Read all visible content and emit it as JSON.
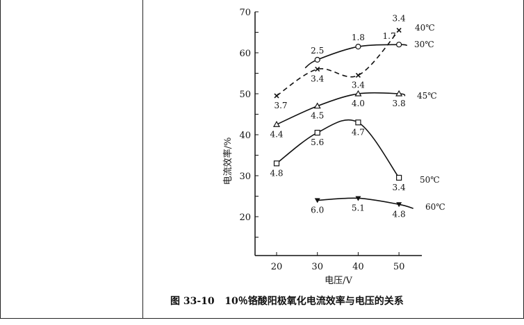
{
  "chart_data": {
    "type": "line",
    "caption": "图 33-10   10％铬酸阳极氧化电流效率与电压的关系",
    "xlabel": "电压/V",
    "ylabel": "电流效率/%",
    "xlim": [
      15,
      55
    ],
    "ylim": [
      10,
      70
    ],
    "xticks": [
      "20",
      "30",
      "40",
      "50"
    ],
    "xtick_values": [
      20,
      30,
      40,
      50
    ],
    "yticks": [
      "20",
      "30",
      "40",
      "50",
      "60",
      "70"
    ],
    "ytick_values": [
      20,
      30,
      40,
      50,
      60,
      70
    ],
    "grid": false,
    "series": [
      {
        "name": "30℃",
        "marker": "circle",
        "dashed": false,
        "x": [
          30,
          40,
          50
        ],
        "y": [
          58.3,
          61.5,
          62
        ],
        "point_labels": [
          "2.5",
          "1.8",
          "1.7"
        ],
        "curve_x": [
          27,
          52
        ]
      },
      {
        "name": "40℃",
        "marker": "x",
        "dashed": true,
        "x": [
          20,
          30,
          40,
          50
        ],
        "y": [
          49.5,
          56,
          54.5,
          65.5
        ],
        "point_labels": [
          "3.7",
          "3.4",
          "3.4",
          "3.4"
        ]
      },
      {
        "name": "45℃",
        "marker": "triangle",
        "dashed": false,
        "x": [
          20,
          30,
          40,
          50
        ],
        "y": [
          42.5,
          47,
          50,
          50
        ],
        "point_labels": [
          "4.4",
          "4.5",
          "4.0",
          "3.8"
        ]
      },
      {
        "name": "50℃",
        "marker": "square",
        "dashed": false,
        "x": [
          20,
          30,
          40,
          50
        ],
        "y": [
          33,
          40.5,
          43,
          29.5
        ],
        "point_labels": [
          "4.8",
          "5.6",
          "4.7",
          "3.4"
        ]
      },
      {
        "name": "60℃",
        "marker": "triangle-down",
        "dashed": false,
        "x": [
          30,
          40,
          50
        ],
        "y": [
          24,
          24.5,
          23
        ],
        "point_labels": [
          "6.0",
          "5.1",
          "4.8"
        ]
      }
    ]
  }
}
